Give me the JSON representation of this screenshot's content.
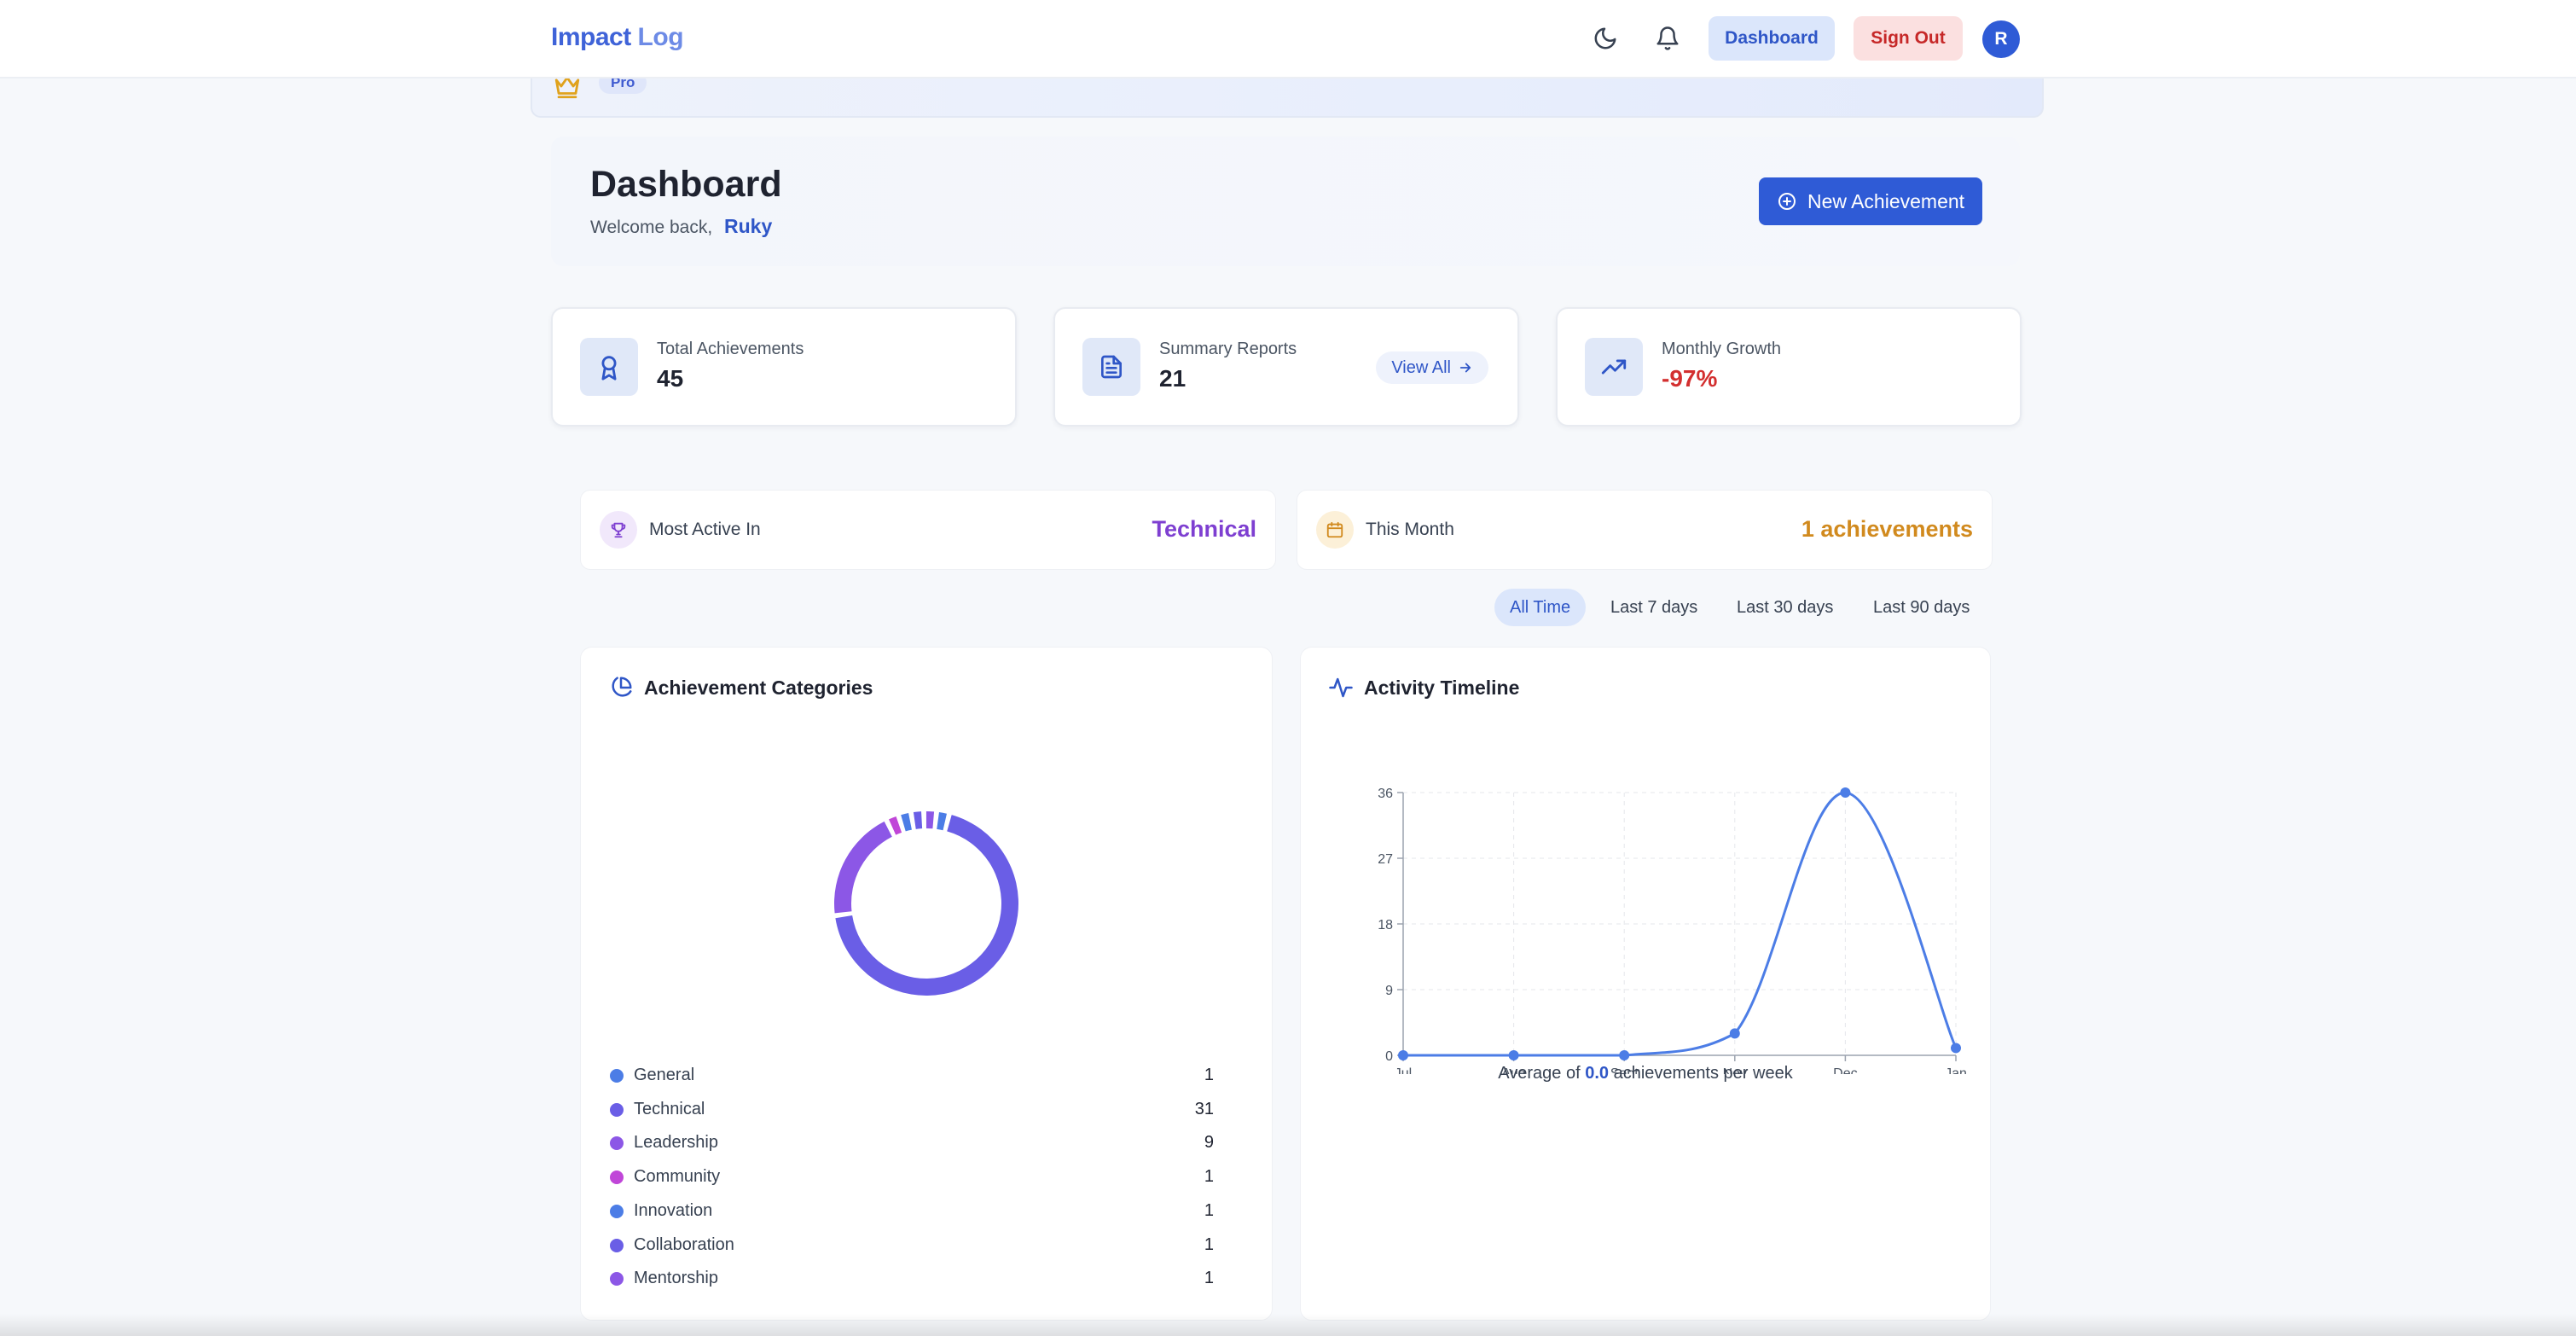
{
  "nav": {
    "brand_part1": "Impact",
    "brand_part2": "Log",
    "dashboard_label": "Dashboard",
    "signout_label": "Sign Out",
    "avatar_initial": "R"
  },
  "banner": {
    "plan_badge": "Pro"
  },
  "header": {
    "title": "Dashboard",
    "welcome_text": "Welcome back,",
    "user_name": "Ruky",
    "new_button_label": "New Achievement"
  },
  "stats": [
    {
      "label": "Total Achievements",
      "value": "45"
    },
    {
      "label": "Summary Reports",
      "value": "21",
      "action_label": "View All"
    },
    {
      "label": "Monthly Growth",
      "value": "-97%"
    }
  ],
  "insights": {
    "most_active_label": "Most Active In",
    "most_active_value": "Technical",
    "this_month_label": "This Month",
    "this_month_value": "1 achievements"
  },
  "filters": [
    "All Time",
    "Last 7 days",
    "Last 30 days",
    "Last 90 days"
  ],
  "colors": {
    "primary": "#2f5bd6",
    "danger": "#d32f2f",
    "purple": "#7e3fd1",
    "amber": "#d18a1e"
  },
  "categories_panel": {
    "title": "Achievement Categories"
  },
  "timeline_panel": {
    "title": "Activity Timeline",
    "avg_prefix": "Average of",
    "avg_value": "0.0",
    "avg_suffix": "achievements per week"
  },
  "chart_data": [
    {
      "type": "pie",
      "title": "Achievement Categories",
      "categories": [
        "General",
        "Technical",
        "Leadership",
        "Community",
        "Innovation",
        "Collaboration",
        "Mentorship"
      ],
      "values": [
        1,
        31,
        9,
        1,
        1,
        1,
        1
      ],
      "colors": [
        "#4c7de6",
        "#6a5ee6",
        "#8c57e6",
        "#c046d8",
        "#4c7de6",
        "#6a5ee6",
        "#8c57e6"
      ]
    },
    {
      "type": "line",
      "title": "Activity Timeline",
      "x": [
        "Jul",
        "Aug",
        "Sept",
        "Nov",
        "Dec",
        "Jan"
      ],
      "values": [
        0,
        0,
        0,
        3,
        36,
        1
      ],
      "yticks": [
        "0",
        "9",
        "18",
        "27",
        "36"
      ],
      "ylim": [
        0,
        36
      ]
    }
  ]
}
